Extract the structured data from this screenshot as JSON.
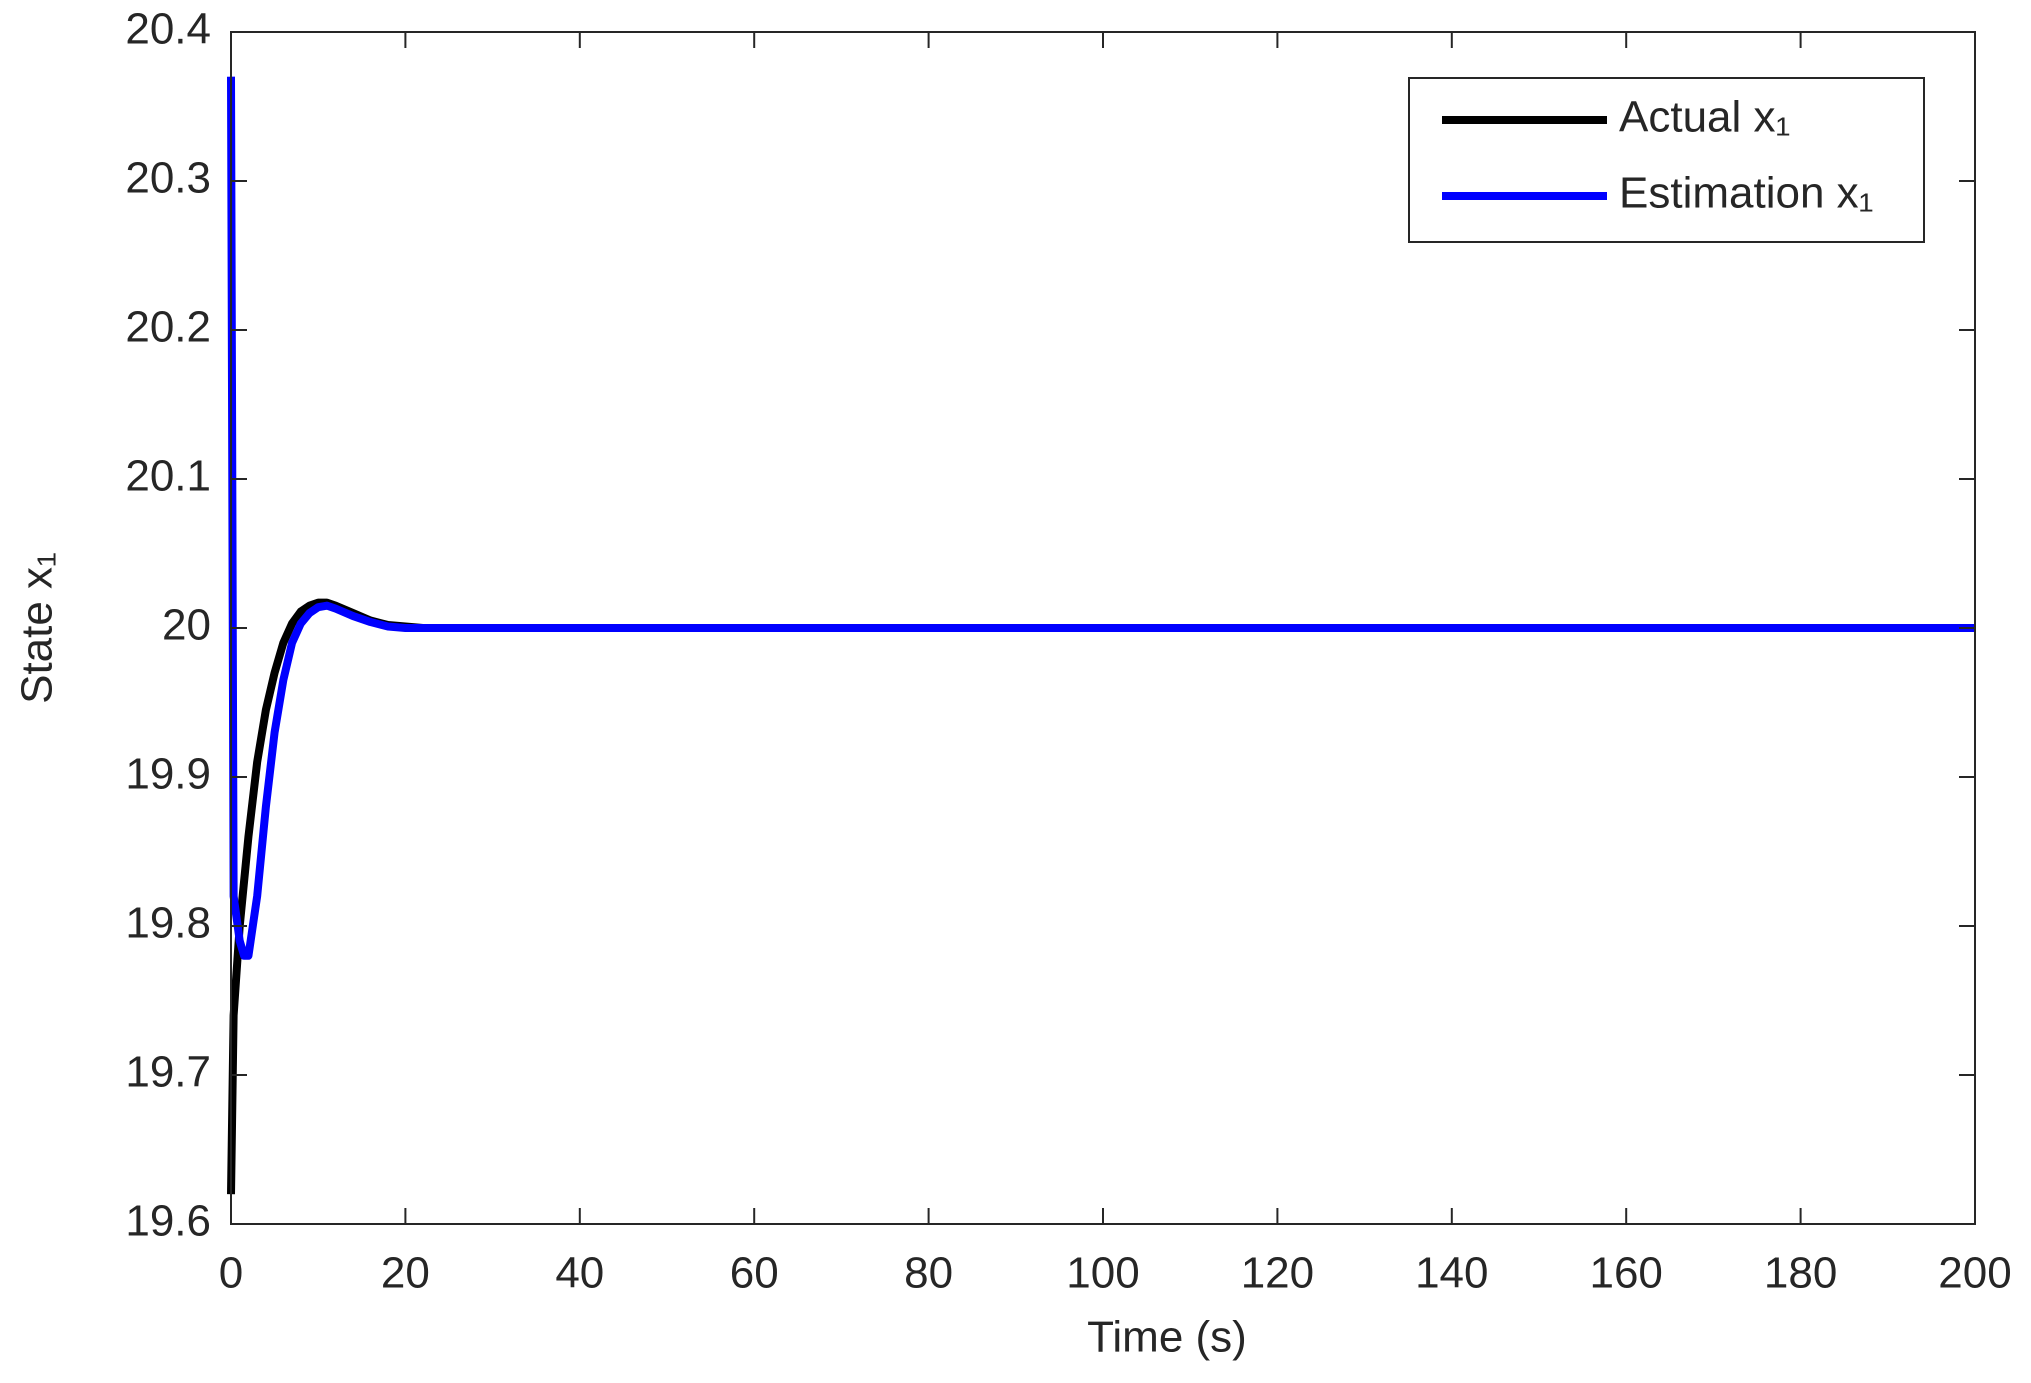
{
  "chart_data": {
    "type": "line",
    "xlabel": "Time (s)",
    "ylabel": "State x₁",
    "x": [
      0,
      0.3,
      1,
      1.5,
      2,
      3,
      4,
      5,
      6,
      7,
      8,
      9,
      10,
      11,
      12,
      14,
      16,
      18,
      20,
      22,
      25,
      30,
      40,
      60,
      100,
      200
    ],
    "series": [
      {
        "name": "Actual x₁",
        "color": "#000000",
        "values": [
          19.62,
          19.74,
          19.8,
          19.83,
          19.86,
          19.91,
          19.945,
          19.97,
          19.99,
          20.003,
          20.011,
          20.015,
          20.017,
          20.017,
          20.015,
          20.01,
          20.005,
          20.002,
          20.001,
          20,
          20,
          20,
          20,
          20,
          20,
          20
        ]
      },
      {
        "name": "Estimation x₁",
        "color": "#0000ff",
        "values": [
          20.37,
          19.82,
          19.79,
          19.78,
          19.78,
          19.82,
          19.88,
          19.93,
          19.965,
          19.99,
          20.003,
          20.01,
          20.014,
          20.015,
          20.013,
          20.008,
          20.004,
          20.001,
          20,
          20,
          20,
          20,
          20,
          20,
          20,
          20
        ]
      }
    ],
    "xlim": [
      0,
      200
    ],
    "xticks": [
      0,
      20,
      40,
      60,
      80,
      100,
      120,
      140,
      160,
      180,
      200
    ],
    "ylim": [
      19.6,
      20.4
    ],
    "yticks": [
      19.6,
      19.7,
      19.8,
      19.9,
      20,
      20.1,
      20.2,
      20.3,
      20.4
    ],
    "grid": false,
    "legend": "northeast"
  }
}
